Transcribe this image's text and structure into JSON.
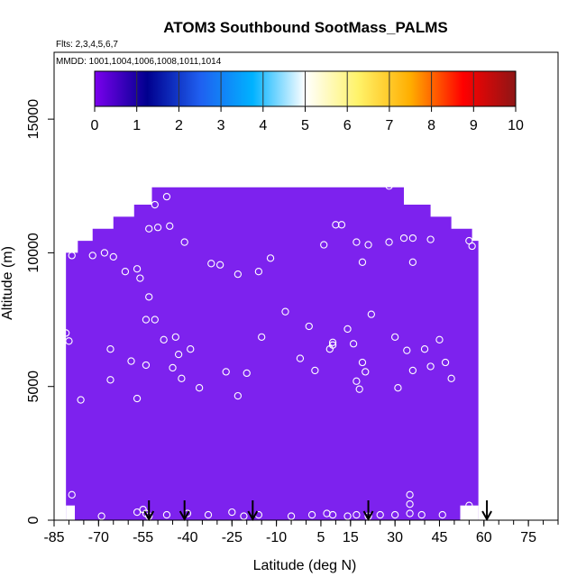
{
  "chart_data": {
    "type": "heatmap",
    "title": "ATOM3 Southbound SootMass_PALMS",
    "flights_label": "Flts: 2,3,4,5,6,7",
    "mmdd_label": "MMDD: 1001,1004,1006,1008,1011,1014",
    "xlabel": "Latitude (deg N)",
    "ylabel": "Altitude (m)",
    "xlim": [
      -85,
      85
    ],
    "ylim": [
      0,
      17500
    ],
    "x_ticks": [
      -85,
      -70,
      -55,
      -40,
      -25,
      -10,
      5,
      15,
      30,
      45,
      60,
      75
    ],
    "x_minor_step": 5,
    "y_ticks": [
      0,
      5000,
      10000,
      15000
    ],
    "colorbar": {
      "min": 0,
      "max": 10,
      "ticks": [
        0,
        1,
        2,
        3,
        4,
        5,
        6,
        7,
        8,
        9,
        10
      ],
      "colors": [
        "#7b00ee",
        "#00008e",
        "#1f5ff0",
        "#00b2ff",
        "#ffffff",
        "#fff36a",
        "#ffae00",
        "#ff0000",
        "#8e1616"
      ]
    },
    "field_color": "#7d22ee",
    "field_value": 0,
    "field_profile": [
      {
        "lat": -81,
        "top": 10000
      },
      {
        "lat": -77,
        "top": 10450
      },
      {
        "lat": -72,
        "top": 10900
      },
      {
        "lat": -65,
        "top": 11350
      },
      {
        "lat": -58,
        "top": 11800
      },
      {
        "lat": -52,
        "top": 12450
      },
      {
        "lat": 2,
        "top": 12450
      },
      {
        "lat": 24,
        "top": 12450
      },
      {
        "lat": 33,
        "top": 11800
      },
      {
        "lat": 42,
        "top": 11350
      },
      {
        "lat": 49,
        "top": 10900
      },
      {
        "lat": 56,
        "top": 10450
      }
    ],
    "field_bottom_profile": [
      {
        "lat": -81,
        "bottom": 0
      },
      {
        "lat": -78,
        "bottom": 550
      },
      {
        "lat": 52,
        "bottom": 550
      },
      {
        "lat": 56,
        "bottom": 0
      }
    ],
    "sample_points": [
      {
        "lat": -79,
        "alt": 9900
      },
      {
        "lat": -81,
        "alt": 7000
      },
      {
        "lat": -80,
        "alt": 6700
      },
      {
        "lat": -76,
        "alt": 4500
      },
      {
        "lat": -72,
        "alt": 9900
      },
      {
        "lat": -68,
        "alt": 10000
      },
      {
        "lat": -65,
        "alt": 9850
      },
      {
        "lat": -61,
        "alt": 9300
      },
      {
        "lat": -57,
        "alt": 9400
      },
      {
        "lat": -56,
        "alt": 9050
      },
      {
        "lat": -53,
        "alt": 10900
      },
      {
        "lat": -50,
        "alt": 10950
      },
      {
        "lat": -46,
        "alt": 11000
      },
      {
        "lat": -41,
        "alt": 10400
      },
      {
        "lat": -32,
        "alt": 9600
      },
      {
        "lat": -29,
        "alt": 9550
      },
      {
        "lat": -23,
        "alt": 9200
      },
      {
        "lat": -16,
        "alt": 9300
      },
      {
        "lat": -12,
        "alt": 9800
      },
      {
        "lat": -18,
        "alt": 12600
      },
      {
        "lat": -51,
        "alt": 11800
      },
      {
        "lat": -47,
        "alt": 12100
      },
      {
        "lat": -66,
        "alt": 6400
      },
      {
        "lat": -59,
        "alt": 5950
      },
      {
        "lat": -54,
        "alt": 7500
      },
      {
        "lat": -51,
        "alt": 7500
      },
      {
        "lat": -53,
        "alt": 8350
      },
      {
        "lat": -48,
        "alt": 6750
      },
      {
        "lat": -45,
        "alt": 5700
      },
      {
        "lat": -43,
        "alt": 6200
      },
      {
        "lat": -39,
        "alt": 6400
      },
      {
        "lat": -44,
        "alt": 6850
      },
      {
        "lat": -42,
        "alt": 5300
      },
      {
        "lat": -36,
        "alt": 4950
      },
      {
        "lat": -27,
        "alt": 5550
      },
      {
        "lat": -23,
        "alt": 4650
      },
      {
        "lat": -20,
        "alt": 5500
      },
      {
        "lat": -54,
        "alt": 5800
      },
      {
        "lat": -57,
        "alt": 4550
      },
      {
        "lat": -66,
        "alt": 5250
      },
      {
        "lat": -15,
        "alt": 6850
      },
      {
        "lat": -7,
        "alt": 7800
      },
      {
        "lat": -2,
        "alt": 6050
      },
      {
        "lat": 1,
        "alt": 7250
      },
      {
        "lat": 3,
        "alt": 5600
      },
      {
        "lat": 8,
        "alt": 6400
      },
      {
        "lat": 9,
        "alt": 6550
      },
      {
        "lat": 9,
        "alt": 6650
      },
      {
        "lat": 6,
        "alt": 10300
      },
      {
        "lat": 10,
        "alt": 11050
      },
      {
        "lat": 12,
        "alt": 11050
      },
      {
        "lat": 14,
        "alt": 7150
      },
      {
        "lat": 17,
        "alt": 10400
      },
      {
        "lat": 19,
        "alt": 9650
      },
      {
        "lat": 21,
        "alt": 10300
      },
      {
        "lat": 22,
        "alt": 7700
      },
      {
        "lat": 16,
        "alt": 6600
      },
      {
        "lat": 19,
        "alt": 5900
      },
      {
        "lat": 20,
        "alt": 5550
      },
      {
        "lat": 17,
        "alt": 5200
      },
      {
        "lat": 18,
        "alt": 4900
      },
      {
        "lat": 28,
        "alt": 12500
      },
      {
        "lat": 28,
        "alt": 10400
      },
      {
        "lat": 33,
        "alt": 10550
      },
      {
        "lat": 36,
        "alt": 10550
      },
      {
        "lat": 42,
        "alt": 10500
      },
      {
        "lat": 36,
        "alt": 9650
      },
      {
        "lat": 30,
        "alt": 6850
      },
      {
        "lat": 34,
        "alt": 6350
      },
      {
        "lat": 36,
        "alt": 5600
      },
      {
        "lat": 31,
        "alt": 4950
      },
      {
        "lat": 40,
        "alt": 6400
      },
      {
        "lat": 42,
        "alt": 5750
      },
      {
        "lat": 45,
        "alt": 6750
      },
      {
        "lat": 47,
        "alt": 5900
      },
      {
        "lat": 49,
        "alt": 5300
      },
      {
        "lat": 55,
        "alt": 10450
      },
      {
        "lat": 56,
        "alt": 10250
      },
      {
        "lat": 55,
        "alt": 550
      },
      {
        "lat": -79,
        "alt": 950
      },
      {
        "lat": -69,
        "alt": 150
      },
      {
        "lat": -57,
        "alt": 300
      },
      {
        "lat": -55,
        "alt": 400
      },
      {
        "lat": -54,
        "alt": 250
      },
      {
        "lat": -53,
        "alt": 150
      },
      {
        "lat": -47,
        "alt": 200
      },
      {
        "lat": -40,
        "alt": 250
      },
      {
        "lat": -33,
        "alt": 200
      },
      {
        "lat": -25,
        "alt": 300
      },
      {
        "lat": -21,
        "alt": 150
      },
      {
        "lat": -16,
        "alt": 200
      },
      {
        "lat": -5,
        "alt": 150
      },
      {
        "lat": 2,
        "alt": 200
      },
      {
        "lat": 7,
        "alt": 250
      },
      {
        "lat": 9,
        "alt": 200
      },
      {
        "lat": 14,
        "alt": 150
      },
      {
        "lat": 17,
        "alt": 200
      },
      {
        "lat": 21,
        "alt": 150
      },
      {
        "lat": 25,
        "alt": 200
      },
      {
        "lat": 30,
        "alt": 200
      },
      {
        "lat": 35,
        "alt": 950
      },
      {
        "lat": 35,
        "alt": 600
      },
      {
        "lat": 35,
        "alt": 250
      },
      {
        "lat": 39,
        "alt": 200
      },
      {
        "lat": 46,
        "alt": 200
      }
    ],
    "marker_latitudes": [
      -53,
      -41,
      -18,
      21,
      61
    ],
    "point_style": "hollow-white-circle",
    "grid": false,
    "legend": "colorbar-top-inside"
  }
}
